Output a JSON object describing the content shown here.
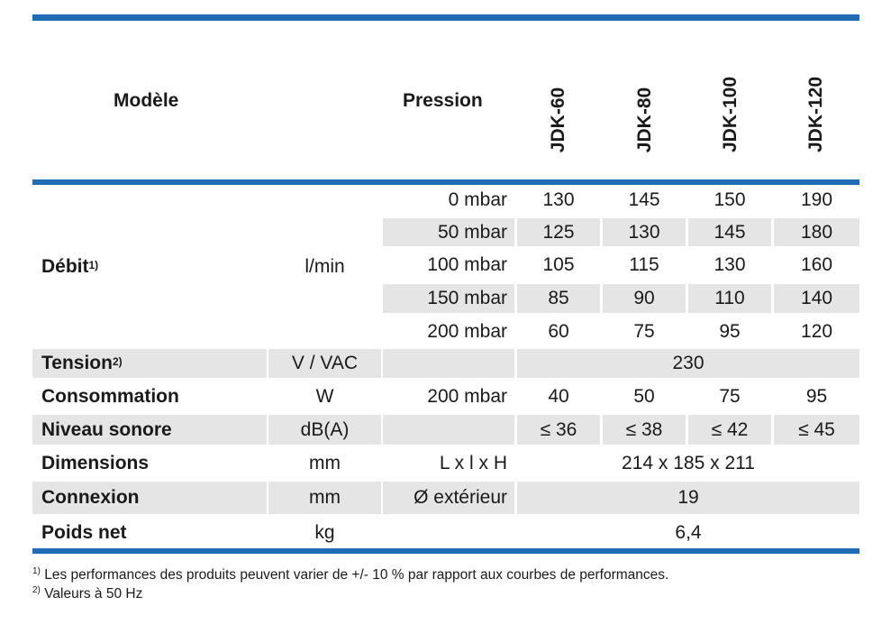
{
  "header": {
    "model_label": "Modèle",
    "pressure_label": "Pression",
    "models": [
      "JDK-60",
      "JDK-80",
      "JDK-100",
      "JDK-120"
    ]
  },
  "debit": {
    "label": "Débit",
    "sup": "1)",
    "unit": "l/min",
    "rows": [
      {
        "pressure": "0 mbar",
        "values": [
          "130",
          "145",
          "150",
          "190"
        ]
      },
      {
        "pressure": "50 mbar",
        "values": [
          "125",
          "130",
          "145",
          "180"
        ]
      },
      {
        "pressure": "100 mbar",
        "values": [
          "105",
          "115",
          "130",
          "160"
        ]
      },
      {
        "pressure": "150 mbar",
        "values": [
          "85",
          "90",
          "110",
          "140"
        ]
      },
      {
        "pressure": "200 mbar",
        "values": [
          "60",
          "75",
          "95",
          "120"
        ]
      }
    ]
  },
  "tension": {
    "label": "Tension",
    "sup": "2)",
    "unit": "V / VAC",
    "value": "230"
  },
  "consommation": {
    "label": "Consommation",
    "unit": "W",
    "pressure": "200 mbar",
    "values": [
      "40",
      "50",
      "75",
      "95"
    ]
  },
  "niveau": {
    "label": "Niveau sonore",
    "unit": "dB(A)",
    "values": [
      "≤ 36",
      "≤ 38",
      "≤ 42",
      "≤ 45"
    ]
  },
  "dimensions": {
    "label": "Dimensions",
    "unit": "mm",
    "pressure": "L x l x H",
    "value": "214 x 185 x 211"
  },
  "connexion": {
    "label": "Connexion",
    "unit": "mm",
    "pressure": "Ø extérieur",
    "value": "19"
  },
  "poids": {
    "label": "Poids net",
    "unit": "kg",
    "value": "6,4"
  },
  "footnotes": [
    {
      "mark": "1)",
      "text": " Les performances des produits peuvent varier de +/- 10 % par rapport aux courbes de performances."
    },
    {
      "mark": "2)",
      "text": " Valeurs à 50 Hz"
    }
  ]
}
